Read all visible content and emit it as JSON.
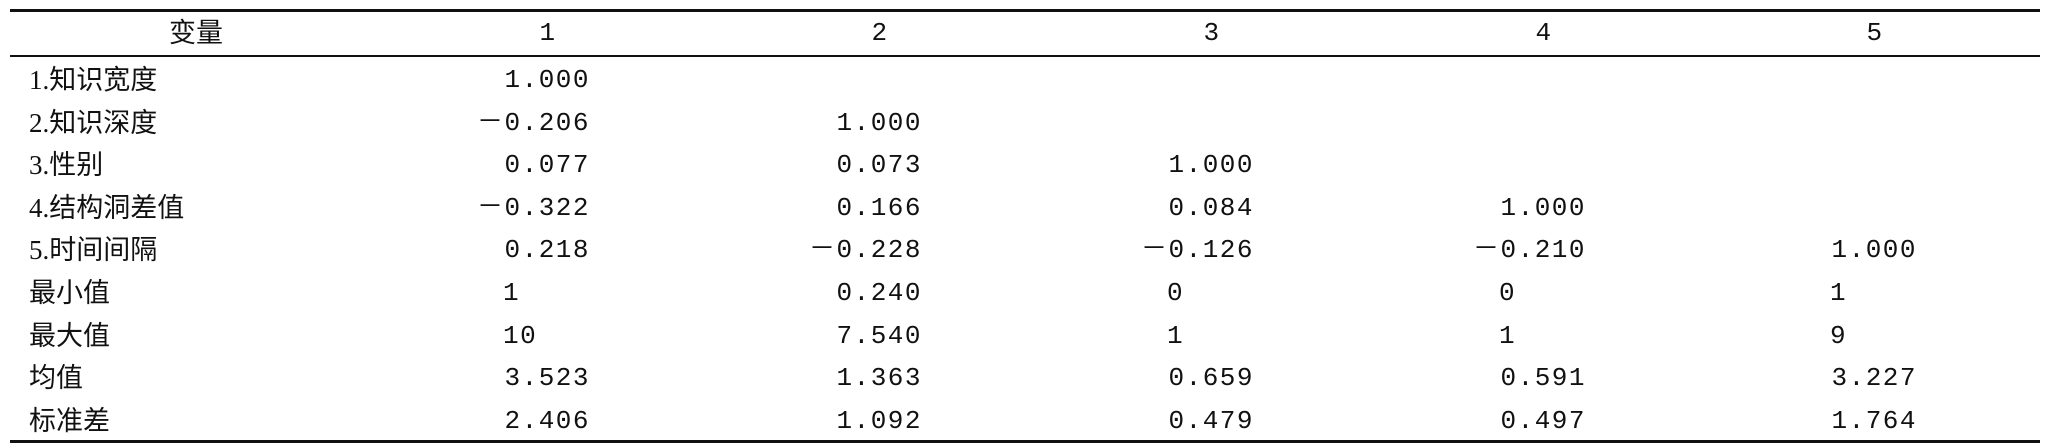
{
  "table": {
    "header": [
      "变量",
      "1",
      "2",
      "3",
      "4",
      "5"
    ],
    "rows": [
      {
        "label": "1.知识宽度",
        "values": [
          "1.000"
        ]
      },
      {
        "label": "2.知识深度",
        "values": [
          "－0.206",
          "1.000"
        ]
      },
      {
        "label": "3.性别",
        "values": [
          "0.077",
          "0.073",
          "1.000"
        ]
      },
      {
        "label": "4.结构洞差值",
        "values": [
          "－0.322",
          "0.166",
          "0.084",
          "1.000"
        ]
      },
      {
        "label": "5.时间间隔",
        "values": [
          "0.218",
          "－0.228",
          "－0.126",
          "－0.210",
          "1.000"
        ]
      },
      {
        "label": "最小值",
        "values": [
          "1",
          "0.240",
          "0",
          "0",
          "1"
        ]
      },
      {
        "label": "最大值",
        "values": [
          "10",
          "7.540",
          "1",
          "1",
          "9"
        ]
      },
      {
        "label": "均值",
        "values": [
          "3.523",
          "1.363",
          "0.659",
          "0.591",
          "3.227"
        ]
      },
      {
        "label": "标准差",
        "values": [
          "2.406",
          "1.092",
          "0.479",
          "0.497",
          "1.764"
        ]
      }
    ]
  }
}
